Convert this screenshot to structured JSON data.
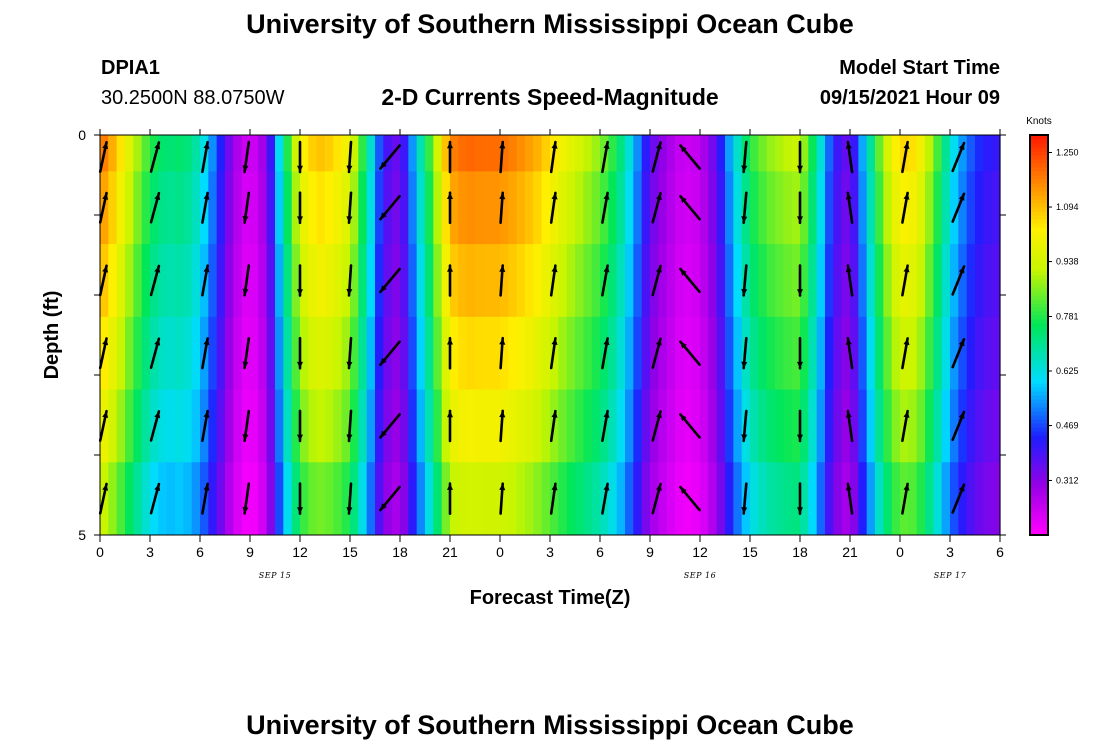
{
  "page_title": "University of Southern Mississippi Ocean Cube",
  "footer_title": "University of Southern Mississippi Ocean Cube",
  "station": {
    "id": "DPIA1",
    "coords": "30.2500N  88.0750W"
  },
  "subtitle": "2-D Currents Speed-Magnitude",
  "model": {
    "label": "Model Start Time",
    "value": "09/15/2021 Hour 09"
  },
  "chart_data": {
    "type": "heatmap",
    "title": "2-D Currents Speed-Magnitude",
    "xlabel": "Forecast Time(Z)",
    "ylabel": "Depth (ft)",
    "x_ticks": [
      "0",
      "3",
      "6",
      "9",
      "12",
      "15",
      "18",
      "21",
      "0",
      "3",
      "6",
      "9",
      "12",
      "15",
      "18",
      "21",
      "0",
      "3",
      "6"
    ],
    "x_hours": [
      0,
      3,
      6,
      9,
      12,
      15,
      18,
      21,
      24,
      27,
      30,
      33,
      36,
      39,
      42,
      45,
      48,
      51,
      54
    ],
    "date_labels": [
      {
        "text": "SEP 15",
        "hour": 10.5
      },
      {
        "text": "SEP 16",
        "hour": 36
      },
      {
        "text": "SEP 17",
        "hour": 51
      }
    ],
    "y_ticks": [
      "0",
      "5"
    ],
    "ylim": [
      0,
      5
    ],
    "xlim": [
      0,
      54
    ],
    "colorbar": {
      "title": "Knots",
      "labels": [
        "1.250",
        "1.094",
        "0.938",
        "0.781",
        "0.625",
        "0.469",
        "0.312"
      ],
      "min": 0.156,
      "max": 1.3
    },
    "depth_rows": 5,
    "speed_profile": [
      {
        "h": 0,
        "v": 1.2
      },
      {
        "h": 1,
        "v": 1.08
      },
      {
        "h": 2,
        "v": 0.92
      },
      {
        "h": 3,
        "v": 0.78
      },
      {
        "h": 4,
        "v": 0.72
      },
      {
        "h": 5,
        "v": 0.74
      },
      {
        "h": 6,
        "v": 0.66
      },
      {
        "h": 7,
        "v": 0.48
      },
      {
        "h": 8,
        "v": 0.28
      },
      {
        "h": 9,
        "v": 0.2
      },
      {
        "h": 10,
        "v": 0.3
      },
      {
        "h": 11,
        "v": 0.7
      },
      {
        "h": 12,
        "v": 1.0
      },
      {
        "h": 13,
        "v": 1.09
      },
      {
        "h": 14,
        "v": 1.06
      },
      {
        "h": 15,
        "v": 0.98
      },
      {
        "h": 16,
        "v": 0.72
      },
      {
        "h": 17,
        "v": 0.4
      },
      {
        "h": 18,
        "v": 0.33
      },
      {
        "h": 19,
        "v": 0.6
      },
      {
        "h": 20,
        "v": 0.86
      },
      {
        "h": 21,
        "v": 1.16
      },
      {
        "h": 22,
        "v": 1.2
      },
      {
        "h": 23,
        "v": 1.19
      },
      {
        "h": 24,
        "v": 1.19
      },
      {
        "h": 25,
        "v": 1.16
      },
      {
        "h": 26,
        "v": 1.12
      },
      {
        "h": 27,
        "v": 1.05
      },
      {
        "h": 28,
        "v": 0.98
      },
      {
        "h": 29,
        "v": 0.92
      },
      {
        "h": 30,
        "v": 0.86
      },
      {
        "h": 31,
        "v": 0.76
      },
      {
        "h": 32,
        "v": 0.58
      },
      {
        "h": 33,
        "v": 0.36
      },
      {
        "h": 34,
        "v": 0.28
      },
      {
        "h": 35,
        "v": 0.22
      },
      {
        "h": 36,
        "v": 0.24
      },
      {
        "h": 37,
        "v": 0.36
      },
      {
        "h": 38,
        "v": 0.6
      },
      {
        "h": 39,
        "v": 0.78
      },
      {
        "h": 40,
        "v": 0.86
      },
      {
        "h": 41,
        "v": 0.9
      },
      {
        "h": 42,
        "v": 0.92
      },
      {
        "h": 43,
        "v": 0.7
      },
      {
        "h": 44,
        "v": 0.42
      },
      {
        "h": 45,
        "v": 0.33
      },
      {
        "h": 46,
        "v": 0.62
      },
      {
        "h": 47,
        "v": 0.9
      },
      {
        "h": 48,
        "v": 1.06
      },
      {
        "h": 49,
        "v": 1.04
      },
      {
        "h": 50,
        "v": 0.86
      },
      {
        "h": 51,
        "v": 0.64
      },
      {
        "h": 52,
        "v": 0.5
      },
      {
        "h": 53,
        "v": 0.42
      },
      {
        "h": 54,
        "v": 0.4
      }
    ],
    "depth_factor": [
      1.0,
      0.96,
      0.92,
      0.88,
      0.84,
      0.78
    ],
    "vectors": [
      {
        "h": 0.2,
        "dir": "up",
        "angle": 12
      },
      {
        "h": 3.3,
        "dir": "up",
        "angle": 15
      },
      {
        "h": 6.3,
        "dir": "up",
        "angle": 10
      },
      {
        "h": 8.8,
        "dir": "down",
        "angle": 8
      },
      {
        "h": 12,
        "dir": "down",
        "angle": 0
      },
      {
        "h": 15,
        "dir": "down",
        "angle": 4
      },
      {
        "h": 17.4,
        "dir": "down",
        "angle": 40
      },
      {
        "h": 21,
        "dir": "up",
        "angle": 0
      },
      {
        "h": 24.1,
        "dir": "up",
        "angle": 4
      },
      {
        "h": 27.2,
        "dir": "up",
        "angle": 8
      },
      {
        "h": 30.3,
        "dir": "up",
        "angle": 10
      },
      {
        "h": 33.4,
        "dir": "up",
        "angle": 15
      },
      {
        "h": 35.4,
        "dir": "up",
        "angle": -40
      },
      {
        "h": 38.7,
        "dir": "down",
        "angle": 5
      },
      {
        "h": 42,
        "dir": "down",
        "angle": 0
      },
      {
        "h": 45,
        "dir": "up",
        "angle": -8
      },
      {
        "h": 48.3,
        "dir": "up",
        "angle": 10
      },
      {
        "h": 51.5,
        "dir": "up",
        "angle": 22
      }
    ]
  }
}
